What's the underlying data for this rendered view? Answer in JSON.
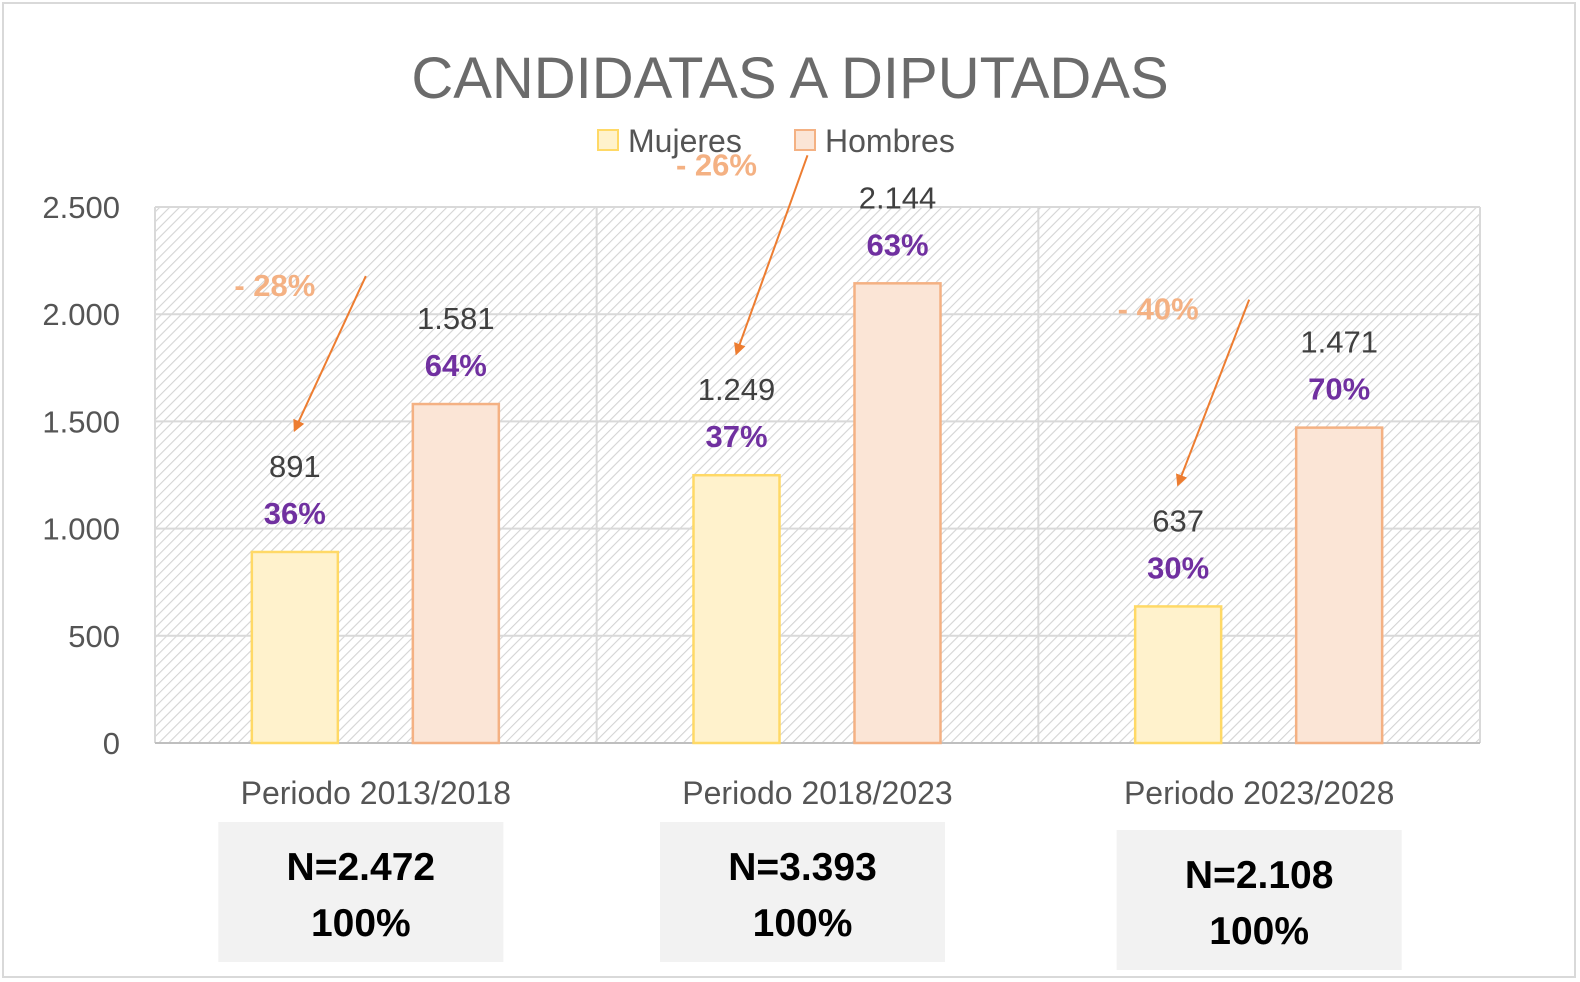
{
  "chart_data": {
    "type": "bar",
    "title": "CANDIDATAS A DIPUTADAS",
    "categories": [
      "Periodo 2013/2018",
      "Periodo 2018/2023",
      "Periodo 2023/2028"
    ],
    "series": [
      {
        "name": "Mujeres",
        "values": [
          891,
          1249,
          637
        ],
        "labels": [
          "891",
          "1.249",
          "637"
        ],
        "pct": [
          "36%",
          "37%",
          "30%"
        ],
        "color": "#fff2cc",
        "stroke": "#ffd966"
      },
      {
        "name": "Hombres",
        "values": [
          1581,
          2144,
          1471
        ],
        "labels": [
          "1.581",
          "2.144",
          "1.471"
        ],
        "pct": [
          "64%",
          "63%",
          "70%"
        ],
        "color": "#fbe5d6",
        "stroke": "#f4b183"
      }
    ],
    "differences": [
      "- 28%",
      "- 26%",
      "- 40%"
    ],
    "yticks": [
      {
        "value": 0,
        "label": "0"
      },
      {
        "value": 500,
        "label": "500"
      },
      {
        "value": 1000,
        "label": "1.000"
      },
      {
        "value": 1500,
        "label": "1.500"
      },
      {
        "value": 2000,
        "label": "2.000"
      },
      {
        "value": 2500,
        "label": "2.500"
      }
    ],
    "ylim": [
      0,
      2500
    ],
    "grid": true,
    "legend_position": "top",
    "totals": [
      {
        "n": "N=2.472",
        "pct": "100%"
      },
      {
        "n": "N=3.393",
        "pct": "100%"
      },
      {
        "n": "N=2.108",
        "pct": "100%"
      }
    ],
    "colors": {
      "arrow": "#ed7d31",
      "percent": "#7030a0",
      "difference": "#f4b183"
    }
  }
}
